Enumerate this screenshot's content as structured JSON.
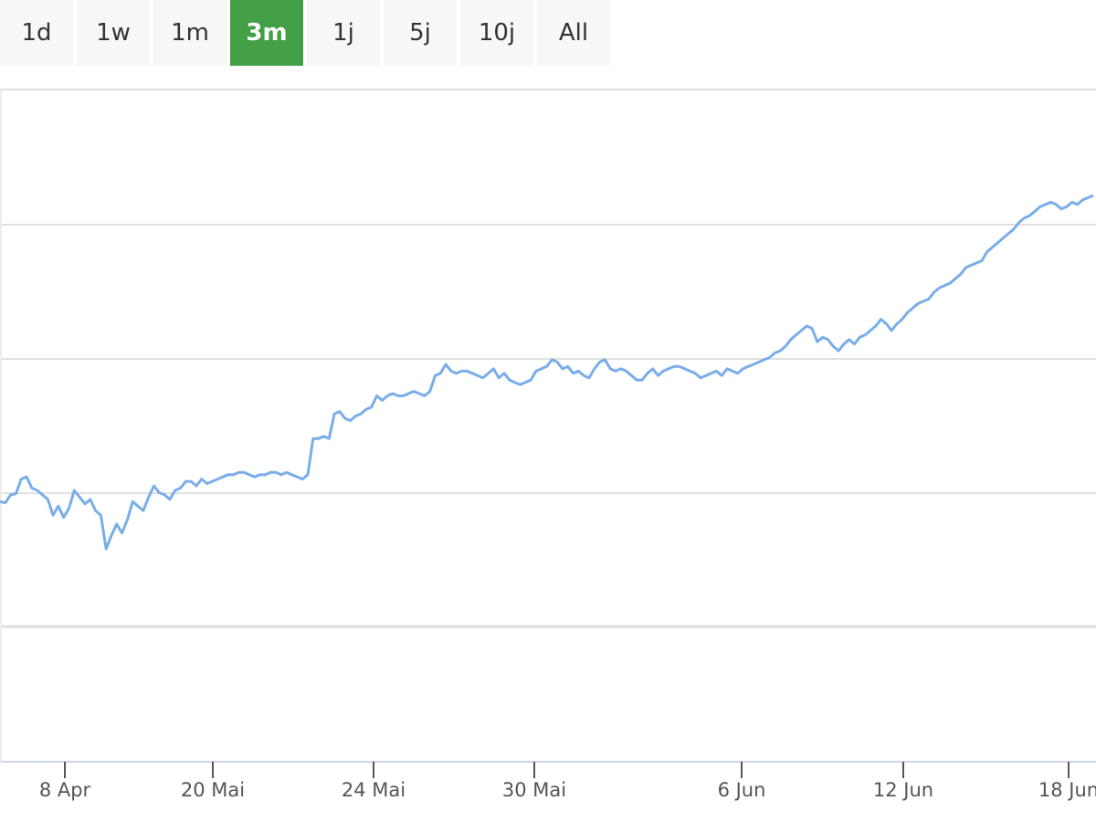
{
  "range_selector": {
    "buttons": [
      {
        "label": "1d",
        "active": false
      },
      {
        "label": "1w",
        "active": false
      },
      {
        "label": "1m",
        "active": false
      },
      {
        "label": "3m",
        "active": true
      },
      {
        "label": "1j",
        "active": false
      },
      {
        "label": "5j",
        "active": false
      },
      {
        "label": "10j",
        "active": false
      },
      {
        "label": "All",
        "active": false
      }
    ]
  },
  "colors": {
    "line": "#7aaee8",
    "active_tab": "#43a047",
    "tab_background": "#f7f7f7",
    "gridline": "#e0e0e0",
    "axis": "#ccd6eb"
  },
  "chart_data": {
    "type": "line",
    "grid": true,
    "legend": "none",
    "y_tick_labels_shown": false,
    "x_tick_labels": [
      "8 Apr",
      "20 Mai",
      "24 Mai",
      "30 Mai",
      "6 Jun",
      "12 Jun",
      "18 Jun"
    ],
    "series": [
      {
        "values": [
          0.4,
          0.35,
          0.7,
          0.75,
          1.4,
          1.5,
          1.0,
          0.9,
          0.7,
          0.5,
          -0.2,
          0.2,
          -0.3,
          0.1,
          0.9,
          0.6,
          0.3,
          0.5,
          0.0,
          -0.2,
          -1.7,
          -1.1,
          -0.6,
          -1.0,
          -0.4,
          0.4,
          0.2,
          0.0,
          0.6,
          1.1,
          0.8,
          0.7,
          0.5,
          0.9,
          1.0,
          1.3,
          1.3,
          1.1,
          1.4,
          1.2,
          1.3,
          1.4,
          1.5,
          1.6,
          1.6,
          1.7,
          1.7,
          1.6,
          1.5,
          1.6,
          1.6,
          1.7,
          1.7,
          1.6,
          1.7,
          1.6,
          1.5,
          1.4,
          1.6,
          3.2,
          3.2,
          3.3,
          3.2,
          4.3,
          4.4,
          4.1,
          4.0,
          4.2,
          4.3,
          4.5,
          4.6,
          5.1,
          4.9,
          5.1,
          5.2,
          5.1,
          5.1,
          5.2,
          5.3,
          5.2,
          5.1,
          5.3,
          6.0,
          6.1,
          6.5,
          6.2,
          6.1,
          6.2,
          6.2,
          6.1,
          6.0,
          5.9,
          6.1,
          6.3,
          5.9,
          6.1,
          5.8,
          5.7,
          5.6,
          5.7,
          5.8,
          6.2,
          6.3,
          6.4,
          6.7,
          6.6,
          6.3,
          6.4,
          6.1,
          6.2,
          6.0,
          5.9,
          6.3,
          6.6,
          6.7,
          6.3,
          6.2,
          6.3,
          6.2,
          6.0,
          5.8,
          5.8,
          6.1,
          6.3,
          6.0,
          6.2,
          6.3,
          6.4,
          6.4,
          6.3,
          6.2,
          6.1,
          5.9,
          6.0,
          6.1,
          6.2,
          6.0,
          6.3,
          6.2,
          6.1,
          6.3,
          6.4,
          6.5,
          6.6,
          6.7,
          6.8,
          7.0,
          7.1,
          7.3,
          7.6,
          7.8,
          8.0,
          8.2,
          8.1,
          7.5,
          7.7,
          7.6,
          7.3,
          7.1,
          7.4,
          7.6,
          7.4,
          7.7,
          7.8,
          8.0,
          8.2,
          8.5,
          8.3,
          8.0,
          8.3,
          8.5,
          8.8,
          9.0,
          9.2,
          9.3,
          9.4,
          9.7,
          9.9,
          10.0,
          10.1,
          10.3,
          10.5,
          10.8,
          10.9,
          11.0,
          11.1,
          11.5,
          11.7,
          11.9,
          12.1,
          12.3,
          12.5,
          12.8,
          13.0,
          13.1,
          13.3,
          13.5,
          13.6,
          13.7,
          13.6,
          13.4,
          13.5,
          13.7,
          13.6,
          13.8,
          13.9,
          14.0
        ]
      }
    ]
  }
}
